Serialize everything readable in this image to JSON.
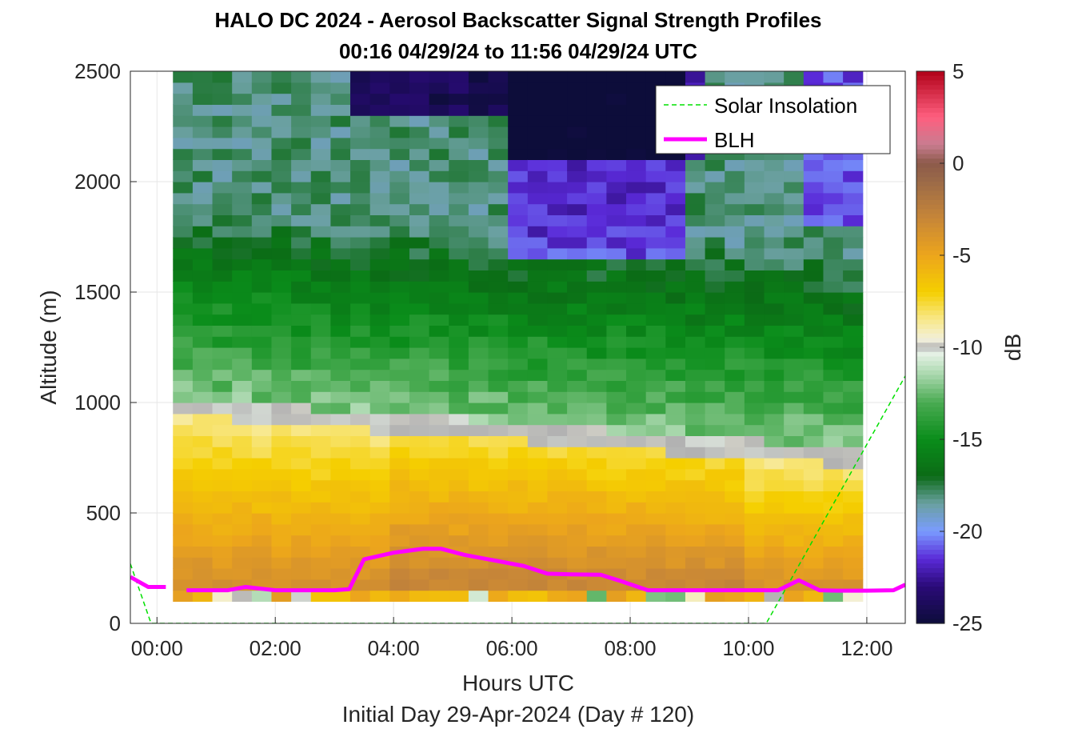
{
  "chart_data": {
    "type": "heatmap",
    "title": "HALO DC 2024 - Aerosol Backscatter Signal Strength Profiles",
    "subtitle": "00:16 04/29/24 to 11:56 04/29/24  UTC",
    "xlabel": "Hours UTC",
    "xlabel2": "Initial Day 29-Apr-2024 (Day # 120)",
    "ylabel": "Altitude (m)",
    "colorbar_label": "dB",
    "xlim": [
      -0.45,
      12.65
    ],
    "ylim": [
      0,
      2500
    ],
    "x_ticks": [
      0,
      2,
      4,
      6,
      8,
      10,
      12
    ],
    "x_tick_labels": [
      "00:00",
      "02:00",
      "04:00",
      "06:00",
      "08:00",
      "10:00",
      "12:00"
    ],
    "y_ticks": [
      0,
      500,
      1000,
      1500,
      2000,
      2500
    ],
    "y_tick_labels": [
      "0",
      "500",
      "1000",
      "1500",
      "2000",
      "2500"
    ],
    "clim": [
      -25,
      5
    ],
    "colorbar_ticks": [
      5,
      0,
      -5,
      -10,
      -15,
      -20,
      -25
    ],
    "colorbar_tick_labels": [
      "5",
      "0",
      "-5",
      "-10",
      "-15",
      "-20",
      "-25"
    ],
    "grid": true,
    "legend_position": "top-right",
    "heatmap_x_range_hours": [
      0.27,
      11.93
    ],
    "heatmap_y_range_m": [
      100,
      2500
    ],
    "series": [
      {
        "name": "Solar Insolation",
        "style": "dashed",
        "color": "#00e000",
        "x": [
          -0.45,
          -0.1,
          10.3,
          12.65
        ],
        "y": [
          270,
          0,
          0,
          1120
        ]
      },
      {
        "name": "BLH",
        "style": "solid",
        "color": "#ff00ff",
        "segments": [
          {
            "x": [
              -0.45,
              -0.15,
              0.15
            ],
            "y": [
              210,
              165,
              165
            ]
          },
          {
            "x": [
              0.5,
              1.2,
              1.5,
              2.0,
              3.0,
              3.25,
              3.5,
              4.0,
              4.5,
              4.8,
              5.2,
              5.7,
              6.2,
              6.6,
              7.0,
              7.5,
              7.8,
              8.3,
              9.0,
              10.0,
              10.5,
              10.85,
              11.2,
              11.5,
              12.0,
              12.45,
              12.65
            ],
            "y": [
              150,
              150,
              165,
              150,
              150,
              155,
              290,
              320,
              338,
              338,
              310,
              285,
              260,
              225,
              222,
              220,
              195,
              150,
              150,
              150,
              150,
              195,
              150,
              148,
              148,
              150,
              175
            ]
          }
        ]
      }
    ]
  },
  "colors": {
    "colormap_stops": [
      {
        "v": -25,
        "c": "#0d0d3a"
      },
      {
        "v": -23,
        "c": "#2a0a78"
      },
      {
        "v": -21.5,
        "c": "#5a2ad8"
      },
      {
        "v": -20,
        "c": "#7a9cff"
      },
      {
        "v": -18.5,
        "c": "#6aa0a0"
      },
      {
        "v": -17,
        "c": "#0b6b16"
      },
      {
        "v": -15,
        "c": "#0a8d1a"
      },
      {
        "v": -13,
        "c": "#4aab52"
      },
      {
        "v": -11.5,
        "c": "#a8d7ac"
      },
      {
        "v": -10.3,
        "c": "#e9f3e9"
      },
      {
        "v": -10,
        "c": "#b2b2b2"
      },
      {
        "v": -9.6,
        "c": "#f2f0dc"
      },
      {
        "v": -8.5,
        "c": "#f8e88a"
      },
      {
        "v": -7,
        "c": "#f5cf00"
      },
      {
        "v": -5,
        "c": "#eca51c"
      },
      {
        "v": -3,
        "c": "#c78638"
      },
      {
        "v": -1,
        "c": "#9b6a48"
      },
      {
        "v": 0,
        "c": "#8c5a4a"
      },
      {
        "v": 1,
        "c": "#c87c90"
      },
      {
        "v": 2.5,
        "c": "#ff5f7f"
      },
      {
        "v": 5,
        "c": "#b00018"
      }
    ],
    "grey_band": "#b2b2b2",
    "grid": "#e6e6e6",
    "axis": "#262626"
  }
}
